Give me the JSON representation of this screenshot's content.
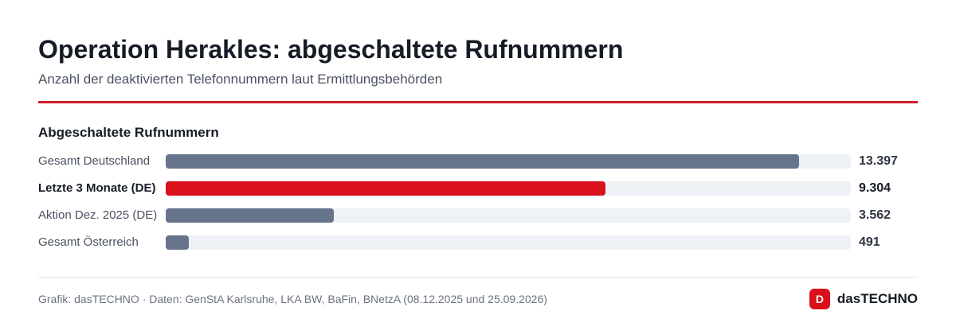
{
  "header": {
    "title": "Operation Herakles: abgeschaltete Rufnummern",
    "subtitle": "Anzahl der deaktivierten Telefonnummern laut Ermittlungsbehörden"
  },
  "colors": {
    "accent": "#cc1f2a",
    "highlight_bar": "#d8111c",
    "default_bar": "#65748a",
    "track": "#eef1f6"
  },
  "chart_data": {
    "type": "bar",
    "orientation": "horizontal",
    "title": "Abgeschaltete Rufnummern",
    "categories": [
      "Gesamt Deutschland",
      "Letzte 3 Monate (DE)",
      "Aktion Dez. 2025 (DE)",
      "Gesamt Österreich"
    ],
    "values": [
      13397,
      9304,
      3562,
      491
    ],
    "value_labels": [
      "13.397",
      "9.304",
      "3.562",
      "491"
    ],
    "highlighted": [
      false,
      true,
      false,
      false
    ],
    "xlim": [
      0,
      14500
    ],
    "grid": false
  },
  "footer": {
    "source": "Grafik: dasTECHNO · Daten: GenStA Karlsruhe, LKA BW, BaFin, BNetzA (08.12.2025 und 25.09.2026)",
    "logo_letter": "D",
    "logo_text": "dasTECHNO"
  }
}
